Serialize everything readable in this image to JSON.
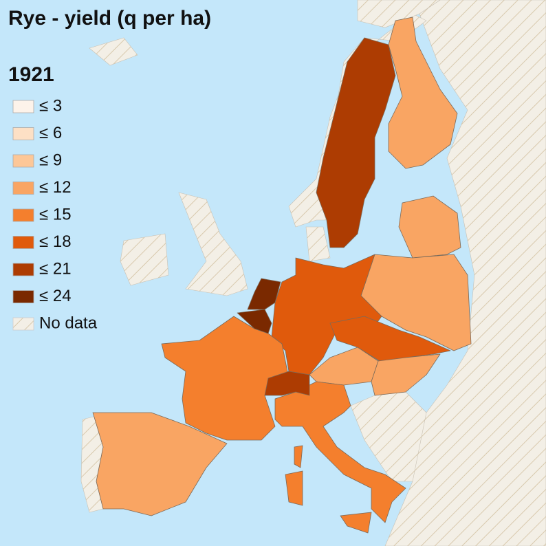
{
  "title": "Rye - yield (q per ha)",
  "year": "1921",
  "legend": [
    {
      "label": "≤ 3",
      "color": "#fdf3ea"
    },
    {
      "label": "≤ 6",
      "color": "#fde0c5"
    },
    {
      "label": "≤ 9",
      "color": "#fdc797"
    },
    {
      "label": "≤ 12",
      "color": "#f9a563"
    },
    {
      "label": "≤ 15",
      "color": "#f47f2d"
    },
    {
      "label": "≤ 18",
      "color": "#e05a0c"
    },
    {
      "label": "≤ 21",
      "color": "#ad3c02"
    },
    {
      "label": "≤ 24",
      "color": "#7a2900"
    }
  ],
  "no_data_label": "No data"
}
